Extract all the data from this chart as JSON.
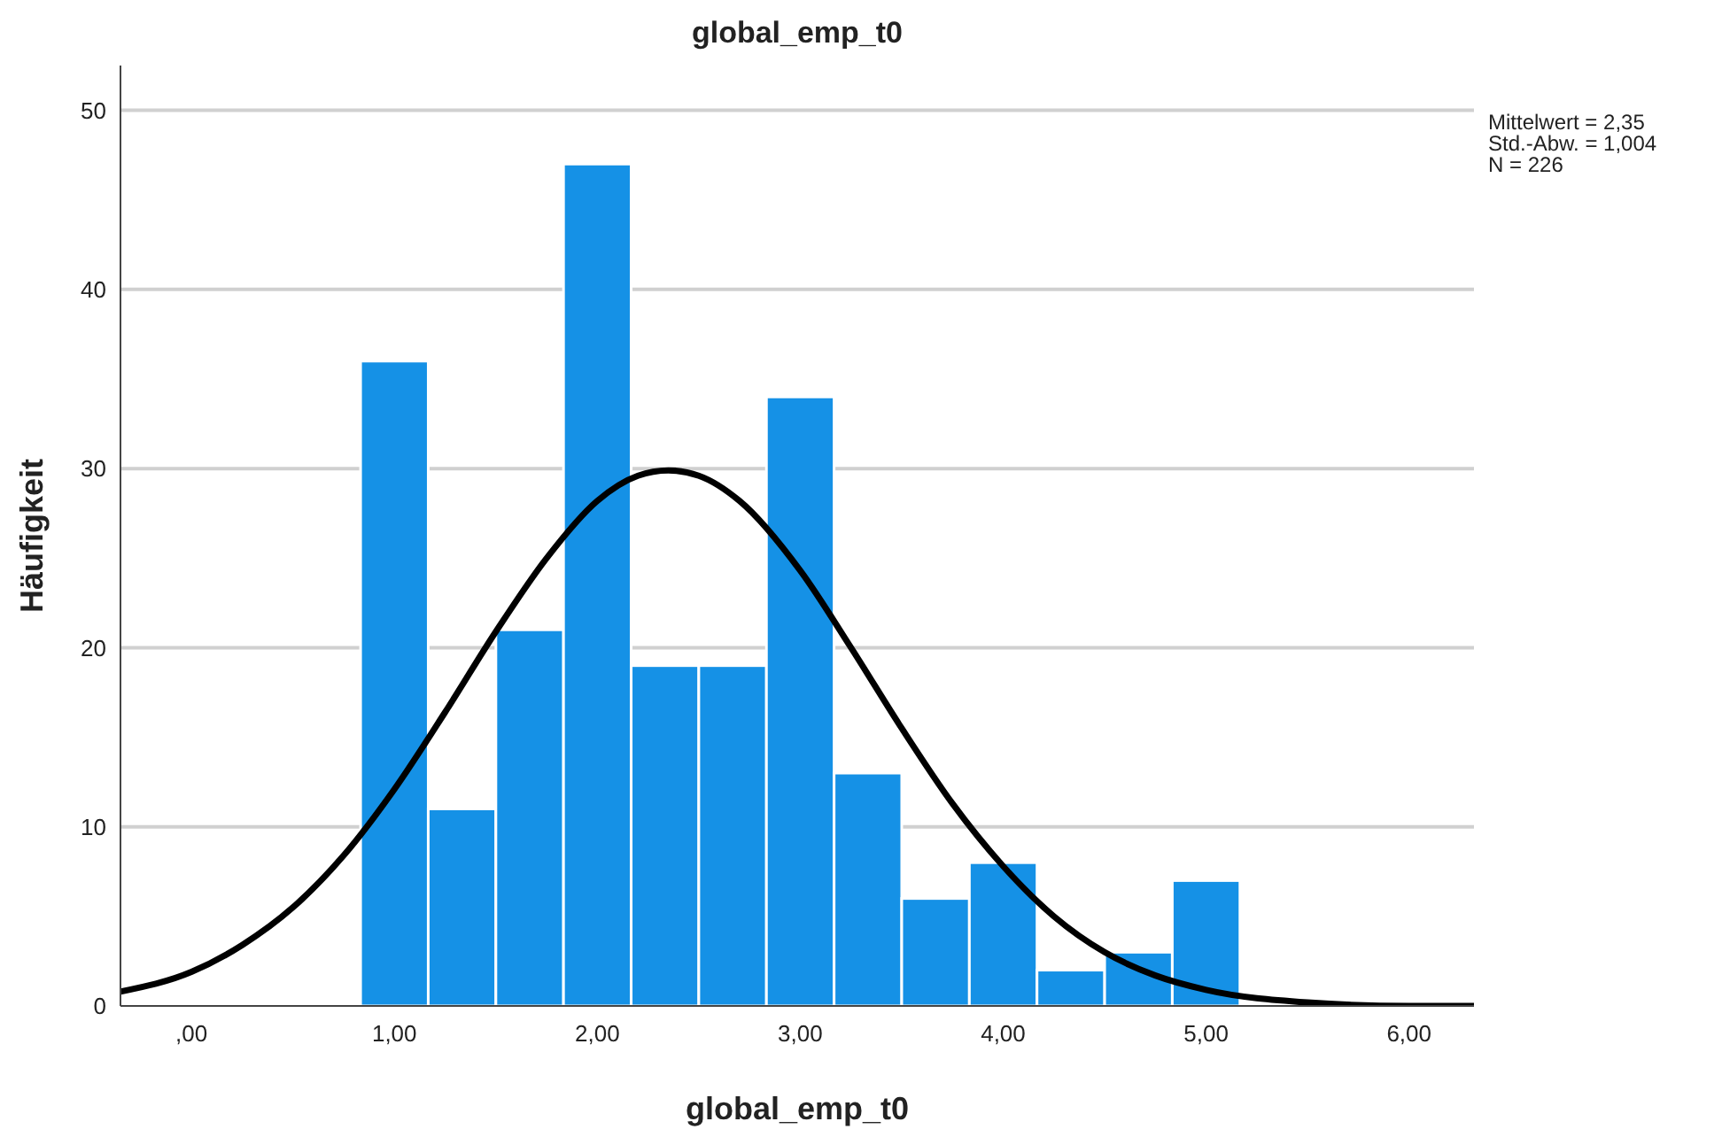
{
  "chart_data": {
    "type": "histogram",
    "title": "global_emp_t0",
    "xlabel": "global_emp_t0",
    "ylabel": "Häufigkeit",
    "annotations": [
      "Mittelwert = 2,35",
      "Std.-Abw. = 1,004",
      "N = 226"
    ],
    "bins": [
      0.8333,
      1.1667,
      1.5,
      1.8333,
      2.1667,
      2.5,
      2.8333,
      3.1667,
      3.5,
      3.8333,
      4.1667,
      4.5,
      4.8333,
      5.1667
    ],
    "series": [
      {
        "color": "#1591e6",
        "values": [
          36,
          11,
          21,
          47,
          19,
          19,
          34,
          13,
          6,
          8,
          2,
          3,
          7
        ]
      },
      {
        "type": "line",
        "color": "#000000",
        "x": [
          -0.35,
          0,
          0.25,
          0.5,
          0.75,
          1,
          1.25,
          1.5,
          1.75,
          2,
          2.2,
          2.35,
          2.5,
          2.7,
          3,
          3.25,
          3.5,
          3.75,
          4,
          4.25,
          4.5,
          4.75,
          5,
          5.5,
          6,
          6.32
        ],
        "values": [
          0.8,
          1.9,
          3.4,
          5.5,
          8.4,
          12.1,
          16.4,
          20.9,
          25.0,
          28.2,
          29.6,
          29.9,
          29.6,
          28.2,
          24.3,
          20.0,
          15.5,
          11.3,
          7.8,
          5.0,
          3.0,
          1.7,
          0.9,
          0.2,
          0.0,
          0.0
        ]
      }
    ],
    "xlim": [
      -0.35,
      6.32
    ],
    "ylim": [
      0,
      52.5
    ],
    "xticks": [
      {
        "value": 0,
        "label": ",00"
      },
      {
        "value": 1,
        "label": "1,00"
      },
      {
        "value": 2,
        "label": "2,00"
      },
      {
        "value": 3,
        "label": "3,00"
      },
      {
        "value": 4,
        "label": "4,00"
      },
      {
        "value": 5,
        "label": "5,00"
      },
      {
        "value": 6,
        "label": "6,00"
      }
    ],
    "yticks": [
      0,
      10,
      20,
      30,
      40,
      50
    ],
    "grid": "y"
  }
}
